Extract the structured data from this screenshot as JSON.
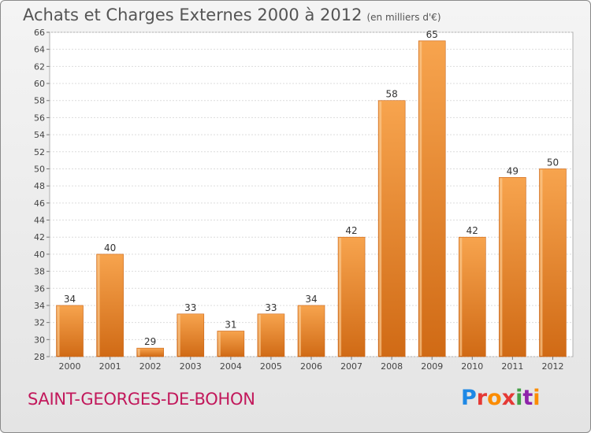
{
  "title": "Achats et Charges Externes 2000 à 2012",
  "subtitle": "(en milliers d'€)",
  "commune": "SAINT-GEORGES-DE-BOHON",
  "logo": "Proxiti",
  "colors": {
    "bar_light": "#f5a04a",
    "bar_dark": "#d4711a",
    "commune": "#c2185b"
  },
  "chart_data": {
    "type": "bar",
    "categories": [
      "2000",
      "2001",
      "2002",
      "2003",
      "2004",
      "2005",
      "2006",
      "2007",
      "2008",
      "2009",
      "2010",
      "2011",
      "2012"
    ],
    "values": [
      34,
      40,
      29,
      33,
      31,
      33,
      34,
      42,
      58,
      65,
      42,
      49,
      50
    ],
    "ylim": [
      28,
      66
    ],
    "yticks": [
      28,
      30,
      32,
      34,
      36,
      38,
      40,
      42,
      44,
      46,
      48,
      50,
      52,
      54,
      56,
      58,
      60,
      62,
      64,
      66
    ],
    "grid": true
  }
}
